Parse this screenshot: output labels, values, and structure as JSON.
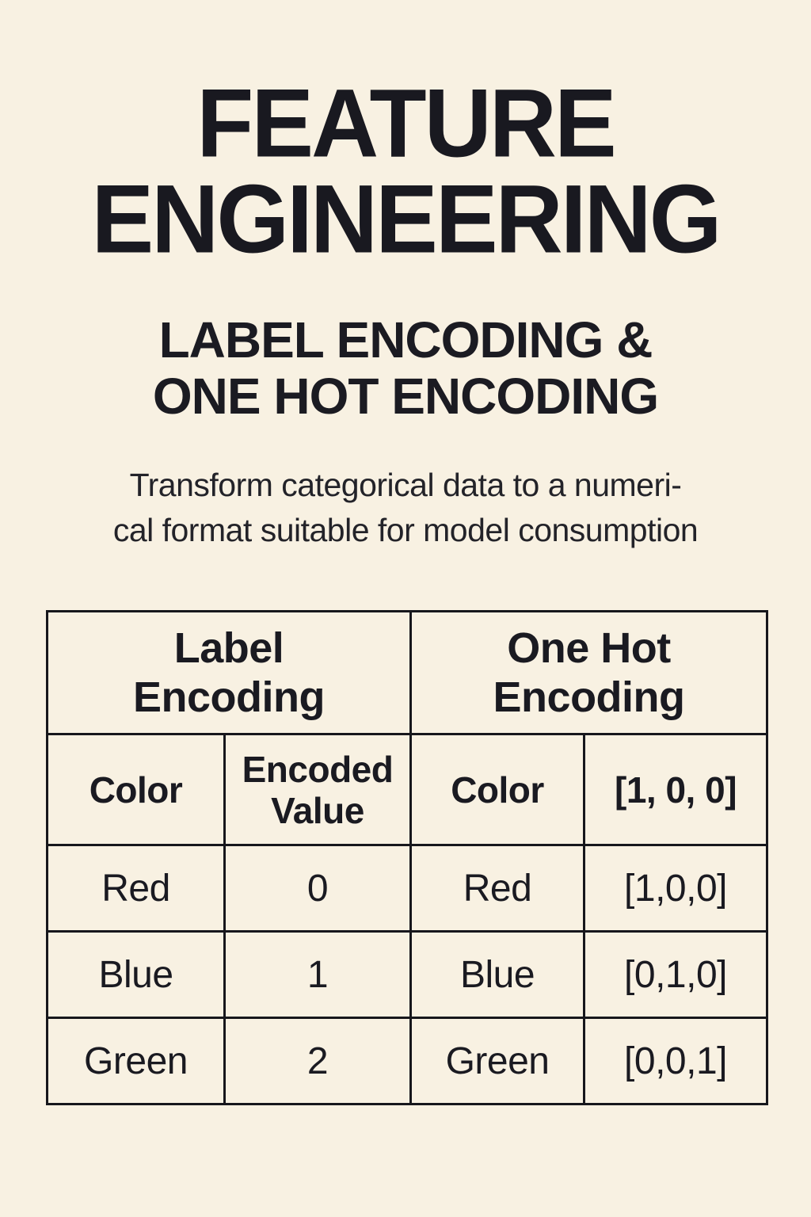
{
  "page": {
    "background_color": "#f8f1e2",
    "text_color": "#1a1a21",
    "border_color": "#17171c"
  },
  "title": {
    "line1": "FEATURE",
    "line2": "ENGINEERING"
  },
  "subtitle": {
    "line1": "LABEL ENCODING &",
    "line2": "ONE HOT ENCODING"
  },
  "description": "Transform categorical data to a numeri-\ncal format suitable for model consumption",
  "table": {
    "group_headers": [
      {
        "label": "Label\nEncoding"
      },
      {
        "label": "One Hot\nEncoding"
      }
    ],
    "column_headers": [
      "Color",
      "Encoded\nValue",
      "Color",
      "[1, 0, 0]"
    ],
    "rows": [
      [
        "Red",
        "0",
        "Red",
        "[1,0,0]"
      ],
      [
        "Blue",
        "1",
        "Blue",
        "[0,1,0]"
      ],
      [
        "Green",
        "2",
        "Green",
        "[0,0,1]"
      ]
    ]
  }
}
